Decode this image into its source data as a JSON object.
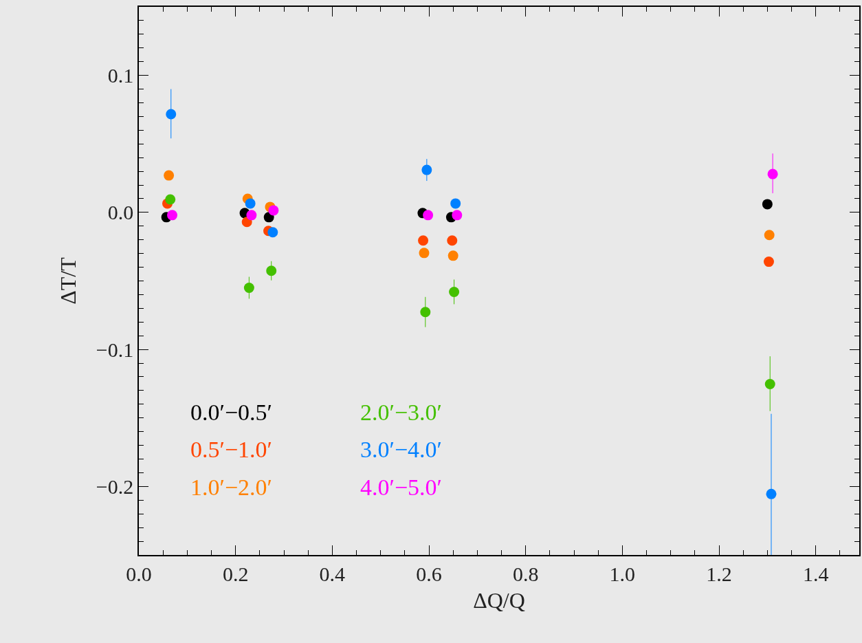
{
  "chart_data": {
    "type": "scatter",
    "xlabel": "ΔQ/Q",
    "ylabel": "ΔT/T",
    "xlim": [
      0,
      1.49
    ],
    "ylim": [
      -0.25,
      0.15
    ],
    "xticks": [
      {
        "value": 0,
        "label": "0.0"
      },
      {
        "value": 0.2,
        "label": "0.2"
      },
      {
        "value": 0.4,
        "label": "0.4"
      },
      {
        "value": 0.6,
        "label": "0.6"
      },
      {
        "value": 0.8,
        "label": "0.8"
      },
      {
        "value": 1.0,
        "label": "1.0"
      },
      {
        "value": 1.2,
        "label": "1.2"
      },
      {
        "value": 1.4,
        "label": "1.4"
      }
    ],
    "yticks": [
      {
        "value": -0.2,
        "label": "−0.2"
      },
      {
        "value": -0.1,
        "label": "−0.1"
      },
      {
        "value": 0,
        "label": "0.0"
      },
      {
        "value": 0.1,
        "label": "0.1"
      }
    ],
    "grid": false,
    "legend": "bottom left",
    "marker": "circle",
    "series": [
      {
        "name": "0.0′−0.5′",
        "color": "#000000",
        "x": [
          0.057,
          0.219,
          0.269,
          0.587,
          0.646,
          1.3
        ],
        "values": [
          -0.0035,
          -0.0005,
          -0.0035,
          -0.0005,
          -0.0035,
          0.006
        ]
      },
      {
        "name": "0.5′−1.0′",
        "color": "#ff4500",
        "x": [
          0.059,
          0.2235,
          0.268,
          0.588,
          0.648,
          1.303
        ],
        "values": [
          0.0065,
          -0.007,
          -0.0135,
          -0.0205,
          -0.0205,
          -0.036
        ]
      },
      {
        "name": "1.0′−2.0′",
        "color": "#ff8000",
        "x": [
          0.062,
          0.225,
          0.2715,
          0.59,
          0.65,
          1.304
        ],
        "values": [
          0.027,
          0.01,
          0.004,
          -0.0296,
          -0.0316,
          -0.0165
        ]
      },
      {
        "name": "2.0′−3.0′",
        "color": "#44c000",
        "x": [
          0.065,
          0.228,
          0.274,
          0.5926,
          0.652,
          1.3055
        ],
        "values": [
          0.0095,
          -0.055,
          -0.0426,
          -0.0727,
          -0.058,
          -0.1253
        ],
        "errors": [
          null,
          0.008,
          0.007,
          0.011,
          0.009,
          [
            -0.145,
            -0.105
          ]
        ]
      },
      {
        "name": "3.0′−4.0′",
        "color": "#0080ff",
        "x": [
          0.0665,
          0.2305,
          0.277,
          0.5955,
          0.655,
          1.308
        ],
        "values": [
          0.0717,
          0.0065,
          -0.0145,
          0.031,
          0.0065,
          -0.2055
        ],
        "errors": [
          [
            0.054,
            0.09
          ],
          null,
          null,
          [
            0.023,
            0.039
          ],
          null,
          [
            -0.25,
            -0.147
          ]
        ]
      },
      {
        "name": "4.0′−5.0′",
        "color": "#ff00ff",
        "x": [
          0.069,
          0.233,
          0.2785,
          0.598,
          0.658,
          1.311
        ],
        "values": [
          -0.002,
          -0.002,
          0.0015,
          -0.002,
          -0.002,
          0.028
        ],
        "errors": [
          null,
          null,
          null,
          null,
          null,
          [
            0.014,
            0.043
          ]
        ]
      }
    ]
  }
}
